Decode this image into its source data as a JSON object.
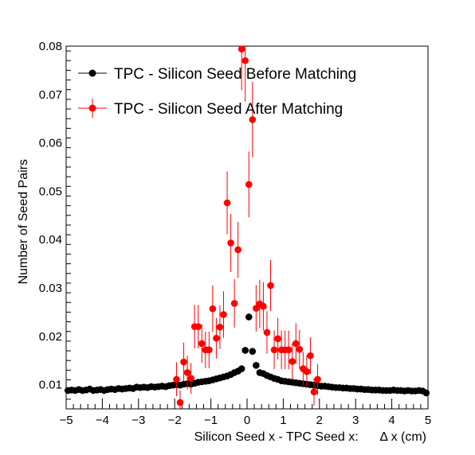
{
  "chart_data": {
    "type": "scatter",
    "title": "",
    "xlabel": "Silicon Seed x - TPC Seed x:      Δ x (cm)",
    "ylabel": "Number of Seed Pairs",
    "xlim": [
      -5,
      5
    ],
    "ylim": [
      0.005,
      0.08
    ],
    "x_ticks": [
      -5,
      -4,
      -3,
      -2,
      -1,
      0,
      1,
      2,
      3,
      4,
      5
    ],
    "x_tick_labels": [
      "−5",
      "−4",
      "−3",
      "−2",
      "−1",
      "0",
      "1",
      "2",
      "3",
      "4",
      "5"
    ],
    "y_ticks": [
      0.01,
      0.02,
      0.03,
      0.04,
      0.05,
      0.06,
      0.07,
      0.08
    ],
    "y_tick_labels": [
      "0.01",
      "0.02",
      "0.03",
      "0.04",
      "0.05",
      "0.06",
      "0.07",
      "0.08"
    ],
    "grid": false,
    "legend_position": "top-left",
    "series": [
      {
        "name": "TPC - Silicon Seed Before Matching",
        "color": "#000000",
        "error_bars": false,
        "x": [
          -4.95,
          -4.85,
          -4.75,
          -4.65,
          -4.55,
          -4.45,
          -4.35,
          -4.25,
          -4.15,
          -4.05,
          -3.95,
          -3.85,
          -3.75,
          -3.65,
          -3.55,
          -3.45,
          -3.35,
          -3.25,
          -3.15,
          -3.05,
          -2.95,
          -2.85,
          -2.75,
          -2.65,
          -2.55,
          -2.45,
          -2.35,
          -2.25,
          -2.15,
          -2.05,
          -1.95,
          -1.85,
          -1.75,
          -1.65,
          -1.55,
          -1.45,
          -1.35,
          -1.25,
          -1.15,
          -1.05,
          -0.95,
          -0.85,
          -0.75,
          -0.65,
          -0.55,
          -0.45,
          -0.35,
          -0.25,
          -0.15,
          -0.05,
          0.05,
          0.15,
          0.25,
          0.35,
          0.45,
          0.55,
          0.65,
          0.75,
          0.85,
          0.95,
          1.05,
          1.15,
          1.25,
          1.35,
          1.45,
          1.55,
          1.65,
          1.75,
          1.85,
          1.95,
          2.05,
          2.15,
          2.25,
          2.35,
          2.45,
          2.55,
          2.65,
          2.75,
          2.85,
          2.95,
          3.05,
          3.15,
          3.25,
          3.35,
          3.45,
          3.55,
          3.65,
          3.75,
          3.85,
          3.95,
          4.05,
          4.15,
          4.25,
          4.35,
          4.45,
          4.55,
          4.65,
          4.75,
          4.85,
          4.95
        ],
        "y": [
          0.0088,
          0.0089,
          0.0088,
          0.009,
          0.0088,
          0.0089,
          0.0091,
          0.0088,
          0.0089,
          0.009,
          0.0088,
          0.009,
          0.0091,
          0.009,
          0.0092,
          0.0091,
          0.0092,
          0.0093,
          0.0092,
          0.0095,
          0.0094,
          0.0095,
          0.0094,
          0.0096,
          0.0095,
          0.0096,
          0.0097,
          0.0096,
          0.0098,
          0.0099,
          0.01,
          0.0099,
          0.0101,
          0.0102,
          0.0101,
          0.0103,
          0.0105,
          0.0106,
          0.0107,
          0.0108,
          0.011,
          0.0112,
          0.0114,
          0.0116,
          0.0118,
          0.0121,
          0.0125,
          0.0128,
          0.0133,
          0.0171,
          0.024,
          0.0169,
          0.014,
          0.0125,
          0.0123,
          0.0119,
          0.0116,
          0.0113,
          0.0111,
          0.0108,
          0.0107,
          0.0106,
          0.0105,
          0.0104,
          0.0103,
          0.0102,
          0.0101,
          0.01,
          0.0099,
          0.0098,
          0.0097,
          0.0097,
          0.0096,
          0.0095,
          0.0094,
          0.0094,
          0.0093,
          0.0093,
          0.0092,
          0.0092,
          0.0091,
          0.0091,
          0.009,
          0.009,
          0.0089,
          0.0089,
          0.0089,
          0.0088,
          0.0088,
          0.0088,
          0.0089,
          0.0088,
          0.0088,
          0.0087,
          0.0088,
          0.0087,
          0.0087,
          0.0088,
          0.0087,
          0.0083
        ]
      },
      {
        "name": "TPC - Silicon Seed After Matching",
        "color": "#ff0000",
        "error_bars": true,
        "x": [
          -1.95,
          -1.85,
          -1.75,
          -1.65,
          -1.55,
          -1.45,
          -1.35,
          -1.25,
          -1.15,
          -1.05,
          -0.95,
          -0.85,
          -0.75,
          -0.65,
          -0.55,
          -0.45,
          -0.35,
          -0.25,
          -0.15,
          -0.05,
          0.05,
          0.15,
          0.25,
          0.35,
          0.45,
          0.55,
          0.65,
          0.75,
          0.85,
          0.95,
          1.05,
          1.15,
          1.25,
          1.35,
          1.45,
          1.55,
          1.65,
          1.75,
          1.85,
          1.95
        ],
        "y": [
          0.0111,
          0.0063,
          0.0147,
          0.0125,
          0.0113,
          0.022,
          0.022,
          0.0185,
          0.0172,
          0.0172,
          0.0257,
          0.0196,
          0.0219,
          0.0245,
          0.0476,
          0.0393,
          0.0268,
          0.0379,
          0.0794,
          0.077,
          0.0514,
          0.0648,
          0.0258,
          0.0267,
          0.0262,
          0.0208,
          0.0305,
          0.0172,
          0.0195,
          0.0172,
          0.0172,
          0.0172,
          0.0148,
          0.0185,
          0.0173,
          0.0133,
          0.0127,
          0.016,
          0.0085,
          0.0111
        ],
        "y_err": [
          0.0035,
          0.0025,
          0.004,
          0.0035,
          0.0032,
          0.0045,
          0.0045,
          0.004,
          0.0038,
          0.0038,
          0.0048,
          0.0042,
          0.0045,
          0.0048,
          0.0065,
          0.006,
          0.005,
          0.0058,
          0.0085,
          0.0085,
          0.0068,
          0.0078,
          0.0048,
          0.005,
          0.005,
          0.0044,
          0.0053,
          0.004,
          0.0043,
          0.004,
          0.004,
          0.004,
          0.0037,
          0.0042,
          0.004,
          0.0035,
          0.0034,
          0.0038,
          0.0028,
          0.0032
        ]
      }
    ]
  }
}
